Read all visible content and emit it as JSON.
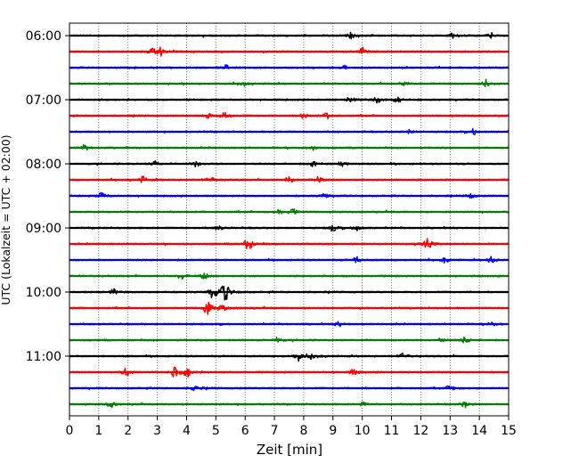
{
  "chart_data": {
    "type": "line",
    "subtype": "helicorder",
    "title": "",
    "xlabel": "Zeit  [min]",
    "ylabel": "UTC (Lokalzeit = UTC + 02:00)",
    "xlim": [
      0,
      15
    ],
    "x_ticks": [
      "0",
      "1",
      "2",
      "3",
      "4",
      "5",
      "6",
      "7",
      "8",
      "9",
      "10",
      "11",
      "12",
      "13",
      "14",
      "15"
    ],
    "y_tick_labels": [
      {
        "label": "06:00",
        "trace": 0
      },
      {
        "label": "07:00",
        "trace": 4
      },
      {
        "label": "08:00",
        "trace": 8
      },
      {
        "label": "09:00",
        "trace": 12
      },
      {
        "label": "10:00",
        "trace": 16
      },
      {
        "label": "11:00",
        "trace": 20
      }
    ],
    "minutes_per_trace": 15,
    "trace_count": 24,
    "color_cycle": [
      "#000000",
      "#ff0000",
      "#0000ff",
      "#008000"
    ],
    "vertical_grid": "dotted, every minute",
    "traces": [
      {
        "start": "06:00",
        "events": [
          {
            "t": 9.6,
            "amp": 0.3
          },
          {
            "t": 13.1,
            "amp": 0.25
          },
          {
            "t": 14.4,
            "amp": 0.2
          }
        ]
      },
      {
        "start": "06:15",
        "events": [
          {
            "t": 2.8,
            "amp": 0.35
          },
          {
            "t": 3.1,
            "amp": 0.4
          },
          {
            "t": 10.0,
            "amp": 0.3
          }
        ]
      },
      {
        "start": "06:30",
        "events": [
          {
            "t": 5.3,
            "amp": 0.3
          },
          {
            "t": 9.4,
            "amp": 0.2
          }
        ]
      },
      {
        "start": "06:45",
        "events": [
          {
            "t": 5.9,
            "amp": 0.3
          },
          {
            "t": 11.4,
            "amp": 0.3
          },
          {
            "t": 14.2,
            "amp": 0.35
          }
        ]
      },
      {
        "start": "07:00",
        "events": [
          {
            "t": 9.6,
            "amp": 0.35
          },
          {
            "t": 10.5,
            "amp": 0.3
          },
          {
            "t": 11.2,
            "amp": 0.35
          }
        ]
      },
      {
        "start": "07:15",
        "events": [
          {
            "t": 4.7,
            "amp": 0.3
          },
          {
            "t": 5.3,
            "amp": 0.35
          },
          {
            "t": 8.0,
            "amp": 0.3
          },
          {
            "t": 8.8,
            "amp": 0.3
          }
        ]
      },
      {
        "start": "07:30",
        "events": [
          {
            "t": 11.6,
            "amp": 0.2
          },
          {
            "t": 13.8,
            "amp": 0.3
          }
        ]
      },
      {
        "start": "07:45",
        "events": [
          {
            "t": 0.5,
            "amp": 0.25
          },
          {
            "t": 8.3,
            "amp": 0.25
          }
        ]
      },
      {
        "start": "08:00",
        "events": [
          {
            "t": 2.9,
            "amp": 0.3
          },
          {
            "t": 4.3,
            "amp": 0.3
          },
          {
            "t": 8.3,
            "amp": 0.25
          },
          {
            "t": 9.3,
            "amp": 0.3
          }
        ]
      },
      {
        "start": "08:15",
        "events": [
          {
            "t": 2.5,
            "amp": 0.35
          },
          {
            "t": 4.8,
            "amp": 0.3
          },
          {
            "t": 7.5,
            "amp": 0.35
          },
          {
            "t": 8.5,
            "amp": 0.3
          }
        ]
      },
      {
        "start": "08:30",
        "events": [
          {
            "t": 1.1,
            "amp": 0.35
          },
          {
            "t": 8.7,
            "amp": 0.25
          },
          {
            "t": 13.7,
            "amp": 0.25
          }
        ]
      },
      {
        "start": "08:45",
        "events": [
          {
            "t": 7.1,
            "amp": 0.3
          },
          {
            "t": 7.6,
            "amp": 0.45
          }
        ]
      },
      {
        "start": "09:00",
        "events": [
          {
            "t": 5.1,
            "amp": 0.25
          },
          {
            "t": 9.0,
            "amp": 0.35
          },
          {
            "t": 9.8,
            "amp": 0.3
          }
        ]
      },
      {
        "start": "09:15",
        "events": [
          {
            "t": 6.1,
            "amp": 0.75
          },
          {
            "t": 12.2,
            "amp": 0.8
          }
        ]
      },
      {
        "start": "09:30",
        "events": [
          {
            "t": 9.8,
            "amp": 0.35
          },
          {
            "t": 12.8,
            "amp": 0.25
          },
          {
            "t": 14.4,
            "amp": 0.4
          }
        ]
      },
      {
        "start": "09:45",
        "events": [
          {
            "t": 3.8,
            "amp": 0.3
          },
          {
            "t": 4.6,
            "amp": 0.3
          }
        ]
      },
      {
        "start": "10:00",
        "events": [
          {
            "t": 4.9,
            "amp": 0.75
          },
          {
            "t": 5.3,
            "amp": 1.0
          },
          {
            "t": 1.5,
            "amp": 0.3
          }
        ]
      },
      {
        "start": "10:15",
        "events": [
          {
            "t": 4.7,
            "amp": 0.75
          },
          {
            "t": 5.2,
            "amp": 0.3
          }
        ]
      },
      {
        "start": "10:30",
        "events": [
          {
            "t": 9.2,
            "amp": 0.25
          },
          {
            "t": 14.4,
            "amp": 0.25
          }
        ]
      },
      {
        "start": "10:45",
        "events": [
          {
            "t": 7.1,
            "amp": 0.3
          },
          {
            "t": 12.7,
            "amp": 0.3
          },
          {
            "t": 13.5,
            "amp": 0.3
          }
        ]
      },
      {
        "start": "11:00",
        "events": [
          {
            "t": 7.8,
            "amp": 0.45
          },
          {
            "t": 8.3,
            "amp": 0.4
          },
          {
            "t": 11.4,
            "amp": 0.3
          }
        ]
      },
      {
        "start": "11:15",
        "events": [
          {
            "t": 1.9,
            "amp": 0.45
          },
          {
            "t": 3.6,
            "amp": 0.55
          },
          {
            "t": 4.0,
            "amp": 0.45
          },
          {
            "t": 9.7,
            "amp": 0.3
          }
        ]
      },
      {
        "start": "11:30",
        "events": [
          {
            "t": 4.3,
            "amp": 0.3
          },
          {
            "t": 13.0,
            "amp": 0.3
          }
        ]
      },
      {
        "start": "11:45",
        "events": [
          {
            "t": 1.4,
            "amp": 0.3
          },
          {
            "t": 13.5,
            "amp": 0.3
          },
          {
            "t": 10.0,
            "amp": 0.2
          }
        ]
      }
    ]
  }
}
